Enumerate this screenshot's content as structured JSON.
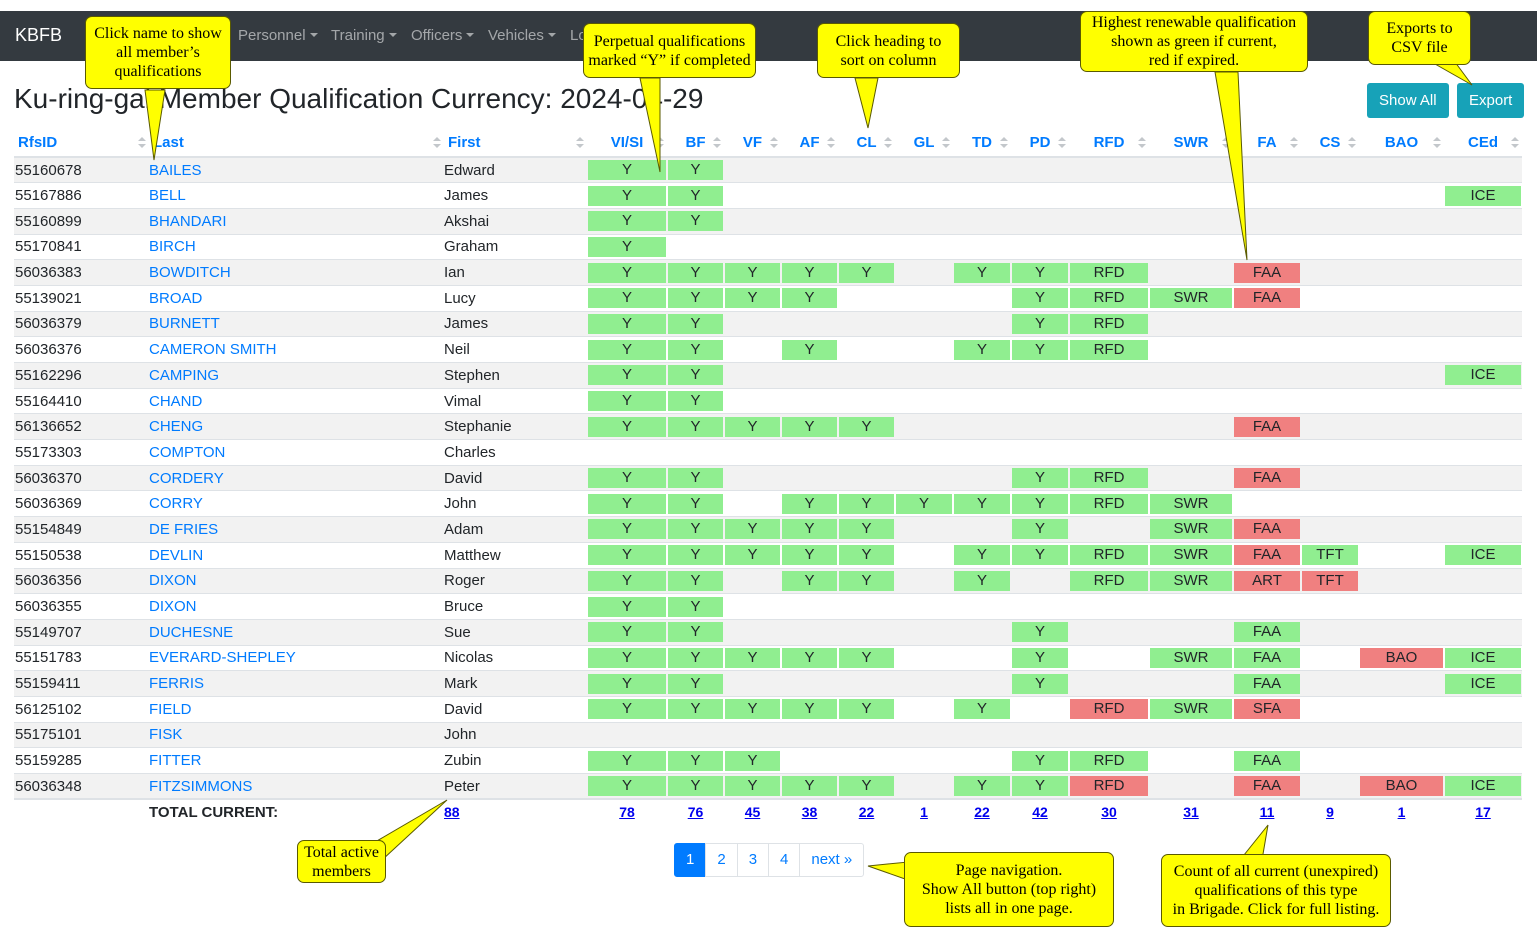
{
  "navbar": {
    "brand": "KBFB",
    "items": [
      "Personnel",
      "Training",
      "Officers",
      "Vehicles",
      "Lo"
    ]
  },
  "page": {
    "title": "Ku-ring-gai Member Qualification Currency: 2024-04-29"
  },
  "buttons": {
    "show_all": "Show All",
    "export": "Export"
  },
  "table": {
    "headers": [
      "RfsID",
      "Last",
      "First",
      "VI/SI",
      "BF",
      "VF",
      "AF",
      "CL",
      "GL",
      "TD",
      "PD",
      "RFD",
      "SWR",
      "FA",
      "CS",
      "BAO",
      "CEd"
    ],
    "rows": [
      {
        "id": "55160678",
        "last": "BAILES",
        "first": "Edward",
        "q": [
          {
            "t": "Y",
            "s": "ok"
          },
          {
            "t": "Y",
            "s": "ok"
          },
          null,
          null,
          null,
          null,
          null,
          null,
          null,
          null,
          null,
          null,
          null,
          null
        ]
      },
      {
        "id": "55167886",
        "last": "BELL",
        "first": "James",
        "q": [
          {
            "t": "Y",
            "s": "ok"
          },
          {
            "t": "Y",
            "s": "ok"
          },
          null,
          null,
          null,
          null,
          null,
          null,
          null,
          null,
          null,
          null,
          null,
          {
            "t": "ICE",
            "s": "ok"
          }
        ]
      },
      {
        "id": "55160899",
        "last": "BHANDARI",
        "first": "Akshai",
        "q": [
          {
            "t": "Y",
            "s": "ok"
          },
          {
            "t": "Y",
            "s": "ok"
          },
          null,
          null,
          null,
          null,
          null,
          null,
          null,
          null,
          null,
          null,
          null,
          null
        ]
      },
      {
        "id": "55170841",
        "last": "BIRCH",
        "first": "Graham",
        "q": [
          {
            "t": "Y",
            "s": "ok"
          },
          null,
          null,
          null,
          null,
          null,
          null,
          null,
          null,
          null,
          null,
          null,
          null,
          null
        ]
      },
      {
        "id": "56036383",
        "last": "BOWDITCH",
        "first": "Ian",
        "q": [
          {
            "t": "Y",
            "s": "ok"
          },
          {
            "t": "Y",
            "s": "ok"
          },
          {
            "t": "Y",
            "s": "ok"
          },
          {
            "t": "Y",
            "s": "ok"
          },
          {
            "t": "Y",
            "s": "ok"
          },
          null,
          {
            "t": "Y",
            "s": "ok"
          },
          {
            "t": "Y",
            "s": "ok"
          },
          {
            "t": "RFD",
            "s": "ok"
          },
          null,
          {
            "t": "FAA",
            "s": "exp"
          },
          null,
          null,
          null
        ]
      },
      {
        "id": "55139021",
        "last": "BROAD",
        "first": "Lucy",
        "q": [
          {
            "t": "Y",
            "s": "ok"
          },
          {
            "t": "Y",
            "s": "ok"
          },
          {
            "t": "Y",
            "s": "ok"
          },
          {
            "t": "Y",
            "s": "ok"
          },
          null,
          null,
          null,
          {
            "t": "Y",
            "s": "ok"
          },
          {
            "t": "RFD",
            "s": "ok"
          },
          {
            "t": "SWR",
            "s": "ok"
          },
          {
            "t": "FAA",
            "s": "exp"
          },
          null,
          null,
          null
        ]
      },
      {
        "id": "56036379",
        "last": "BURNETT",
        "first": "James",
        "q": [
          {
            "t": "Y",
            "s": "ok"
          },
          {
            "t": "Y",
            "s": "ok"
          },
          null,
          null,
          null,
          null,
          null,
          {
            "t": "Y",
            "s": "ok"
          },
          {
            "t": "RFD",
            "s": "ok"
          },
          null,
          null,
          null,
          null,
          null
        ]
      },
      {
        "id": "56036376",
        "last": "CAMERON SMITH",
        "first": "Neil",
        "q": [
          {
            "t": "Y",
            "s": "ok"
          },
          {
            "t": "Y",
            "s": "ok"
          },
          null,
          {
            "t": "Y",
            "s": "ok"
          },
          null,
          null,
          {
            "t": "Y",
            "s": "ok"
          },
          {
            "t": "Y",
            "s": "ok"
          },
          {
            "t": "RFD",
            "s": "ok"
          },
          null,
          null,
          null,
          null,
          null
        ]
      },
      {
        "id": "55162296",
        "last": "CAMPING",
        "first": "Stephen",
        "q": [
          {
            "t": "Y",
            "s": "ok"
          },
          {
            "t": "Y",
            "s": "ok"
          },
          null,
          null,
          null,
          null,
          null,
          null,
          null,
          null,
          null,
          null,
          null,
          {
            "t": "ICE",
            "s": "ok"
          }
        ]
      },
      {
        "id": "55164410",
        "last": "CHAND",
        "first": "Vimal",
        "q": [
          {
            "t": "Y",
            "s": "ok"
          },
          {
            "t": "Y",
            "s": "ok"
          },
          null,
          null,
          null,
          null,
          null,
          null,
          null,
          null,
          null,
          null,
          null,
          null
        ]
      },
      {
        "id": "56136652",
        "last": "CHENG",
        "first": "Stephanie",
        "q": [
          {
            "t": "Y",
            "s": "ok"
          },
          {
            "t": "Y",
            "s": "ok"
          },
          {
            "t": "Y",
            "s": "ok"
          },
          {
            "t": "Y",
            "s": "ok"
          },
          {
            "t": "Y",
            "s": "ok"
          },
          null,
          null,
          null,
          null,
          null,
          {
            "t": "FAA",
            "s": "exp"
          },
          null,
          null,
          null
        ]
      },
      {
        "id": "55173303",
        "last": "COMPTON",
        "first": "Charles",
        "q": [
          null,
          null,
          null,
          null,
          null,
          null,
          null,
          null,
          null,
          null,
          null,
          null,
          null,
          null
        ]
      },
      {
        "id": "56036370",
        "last": "CORDERY",
        "first": "David",
        "q": [
          {
            "t": "Y",
            "s": "ok"
          },
          {
            "t": "Y",
            "s": "ok"
          },
          null,
          null,
          null,
          null,
          null,
          {
            "t": "Y",
            "s": "ok"
          },
          {
            "t": "RFD",
            "s": "ok"
          },
          null,
          {
            "t": "FAA",
            "s": "exp"
          },
          null,
          null,
          null
        ]
      },
      {
        "id": "56036369",
        "last": "CORRY",
        "first": "John",
        "q": [
          {
            "t": "Y",
            "s": "ok"
          },
          {
            "t": "Y",
            "s": "ok"
          },
          null,
          {
            "t": "Y",
            "s": "ok"
          },
          {
            "t": "Y",
            "s": "ok"
          },
          {
            "t": "Y",
            "s": "ok"
          },
          {
            "t": "Y",
            "s": "ok"
          },
          {
            "t": "Y",
            "s": "ok"
          },
          {
            "t": "RFD",
            "s": "ok"
          },
          {
            "t": "SWR",
            "s": "ok"
          },
          null,
          null,
          null,
          null
        ]
      },
      {
        "id": "55154849",
        "last": "DE FRIES",
        "first": "Adam",
        "q": [
          {
            "t": "Y",
            "s": "ok"
          },
          {
            "t": "Y",
            "s": "ok"
          },
          {
            "t": "Y",
            "s": "ok"
          },
          {
            "t": "Y",
            "s": "ok"
          },
          {
            "t": "Y",
            "s": "ok"
          },
          null,
          null,
          {
            "t": "Y",
            "s": "ok"
          },
          null,
          {
            "t": "SWR",
            "s": "ok"
          },
          {
            "t": "FAA",
            "s": "exp"
          },
          null,
          null,
          null
        ]
      },
      {
        "id": "55150538",
        "last": "DEVLIN",
        "first": "Matthew",
        "q": [
          {
            "t": "Y",
            "s": "ok"
          },
          {
            "t": "Y",
            "s": "ok"
          },
          {
            "t": "Y",
            "s": "ok"
          },
          {
            "t": "Y",
            "s": "ok"
          },
          {
            "t": "Y",
            "s": "ok"
          },
          null,
          {
            "t": "Y",
            "s": "ok"
          },
          {
            "t": "Y",
            "s": "ok"
          },
          {
            "t": "RFD",
            "s": "ok"
          },
          {
            "t": "SWR",
            "s": "ok"
          },
          {
            "t": "FAA",
            "s": "exp"
          },
          {
            "t": "TFT",
            "s": "ok"
          },
          null,
          {
            "t": "ICE",
            "s": "ok"
          }
        ]
      },
      {
        "id": "56036356",
        "last": "DIXON",
        "first": "Roger",
        "q": [
          {
            "t": "Y",
            "s": "ok"
          },
          {
            "t": "Y",
            "s": "ok"
          },
          null,
          {
            "t": "Y",
            "s": "ok"
          },
          {
            "t": "Y",
            "s": "ok"
          },
          null,
          {
            "t": "Y",
            "s": "ok"
          },
          null,
          {
            "t": "RFD",
            "s": "ok"
          },
          {
            "t": "SWR",
            "s": "ok"
          },
          {
            "t": "ART",
            "s": "exp"
          },
          {
            "t": "TFT",
            "s": "exp"
          },
          null,
          null
        ]
      },
      {
        "id": "56036355",
        "last": "DIXON",
        "first": "Bruce",
        "q": [
          {
            "t": "Y",
            "s": "ok"
          },
          {
            "t": "Y",
            "s": "ok"
          },
          null,
          null,
          null,
          null,
          null,
          null,
          null,
          null,
          null,
          null,
          null,
          null
        ]
      },
      {
        "id": "55149707",
        "last": "DUCHESNE",
        "first": "Sue",
        "q": [
          {
            "t": "Y",
            "s": "ok"
          },
          {
            "t": "Y",
            "s": "ok"
          },
          null,
          null,
          null,
          null,
          null,
          {
            "t": "Y",
            "s": "ok"
          },
          null,
          null,
          {
            "t": "FAA",
            "s": "ok"
          },
          null,
          null,
          null
        ]
      },
      {
        "id": "55151783",
        "last": "EVERARD-SHEPLEY",
        "first": "Nicolas",
        "q": [
          {
            "t": "Y",
            "s": "ok"
          },
          {
            "t": "Y",
            "s": "ok"
          },
          {
            "t": "Y",
            "s": "ok"
          },
          {
            "t": "Y",
            "s": "ok"
          },
          {
            "t": "Y",
            "s": "ok"
          },
          null,
          null,
          {
            "t": "Y",
            "s": "ok"
          },
          null,
          {
            "t": "SWR",
            "s": "ok"
          },
          {
            "t": "FAA",
            "s": "ok"
          },
          null,
          {
            "t": "BAO",
            "s": "exp"
          },
          {
            "t": "ICE",
            "s": "ok"
          }
        ]
      },
      {
        "id": "55159411",
        "last": "FERRIS",
        "first": "Mark",
        "q": [
          {
            "t": "Y",
            "s": "ok"
          },
          {
            "t": "Y",
            "s": "ok"
          },
          null,
          null,
          null,
          null,
          null,
          {
            "t": "Y",
            "s": "ok"
          },
          null,
          null,
          {
            "t": "FAA",
            "s": "ok"
          },
          null,
          null,
          {
            "t": "ICE",
            "s": "ok"
          }
        ]
      },
      {
        "id": "56125102",
        "last": "FIELD",
        "first": "David",
        "q": [
          {
            "t": "Y",
            "s": "ok"
          },
          {
            "t": "Y",
            "s": "ok"
          },
          {
            "t": "Y",
            "s": "ok"
          },
          {
            "t": "Y",
            "s": "ok"
          },
          {
            "t": "Y",
            "s": "ok"
          },
          null,
          {
            "t": "Y",
            "s": "ok"
          },
          null,
          {
            "t": "RFD",
            "s": "exp"
          },
          {
            "t": "SWR",
            "s": "ok"
          },
          {
            "t": "SFA",
            "s": "exp"
          },
          null,
          null,
          null
        ]
      },
      {
        "id": "55175101",
        "last": "FISK",
        "first": "John",
        "q": [
          null,
          null,
          null,
          null,
          null,
          null,
          null,
          null,
          null,
          null,
          null,
          null,
          null,
          null
        ]
      },
      {
        "id": "55159285",
        "last": "FITTER",
        "first": "Zubin",
        "q": [
          {
            "t": "Y",
            "s": "ok"
          },
          {
            "t": "Y",
            "s": "ok"
          },
          {
            "t": "Y",
            "s": "ok"
          },
          null,
          null,
          null,
          null,
          {
            "t": "Y",
            "s": "ok"
          },
          {
            "t": "RFD",
            "s": "ok"
          },
          null,
          {
            "t": "FAA",
            "s": "ok"
          },
          null,
          null,
          null
        ]
      },
      {
        "id": "56036348",
        "last": "FITZSIMMONS",
        "first": "Peter",
        "q": [
          {
            "t": "Y",
            "s": "ok"
          },
          {
            "t": "Y",
            "s": "ok"
          },
          {
            "t": "Y",
            "s": "ok"
          },
          {
            "t": "Y",
            "s": "ok"
          },
          {
            "t": "Y",
            "s": "ok"
          },
          null,
          {
            "t": "Y",
            "s": "ok"
          },
          {
            "t": "Y",
            "s": "ok"
          },
          {
            "t": "RFD",
            "s": "exp"
          },
          null,
          {
            "t": "FAA",
            "s": "exp"
          },
          null,
          {
            "t": "BAO",
            "s": "exp"
          },
          {
            "t": "ICE",
            "s": "ok"
          }
        ]
      }
    ],
    "total_label": "TOTAL CURRENT:",
    "total_members": "88",
    "totals": [
      "78",
      "76",
      "45",
      "38",
      "22",
      "1",
      "22",
      "42",
      "30",
      "31",
      "11",
      "9",
      "1",
      "17"
    ]
  },
  "pagination": {
    "pages": [
      "1",
      "2",
      "3",
      "4"
    ],
    "next": "next »",
    "active": "1"
  },
  "colors": {
    "current": "#90ee90",
    "expired": "#f08080",
    "navbar": "#343a40",
    "button": "#17a2b8",
    "link": "#007bff"
  },
  "callouts": {
    "name_click": "Click name to show\nall member’s\nqualifications",
    "perpetual": "Perpetual qualifications\nmarked “Y” if completed",
    "sort": "Click heading to\nsort on column",
    "renewable": "Highest renewable qualification\nshown as green if current,\nred if expired.",
    "export": "Exports to\nCSV file",
    "total": "Total active\nmembers",
    "page_nav": "Page navigation.\nShow All button (top right)\nlists all in one page.",
    "count": "Count of all current (unexpired)\nqualifications of this type\nin Brigade. Click for full listing."
  }
}
